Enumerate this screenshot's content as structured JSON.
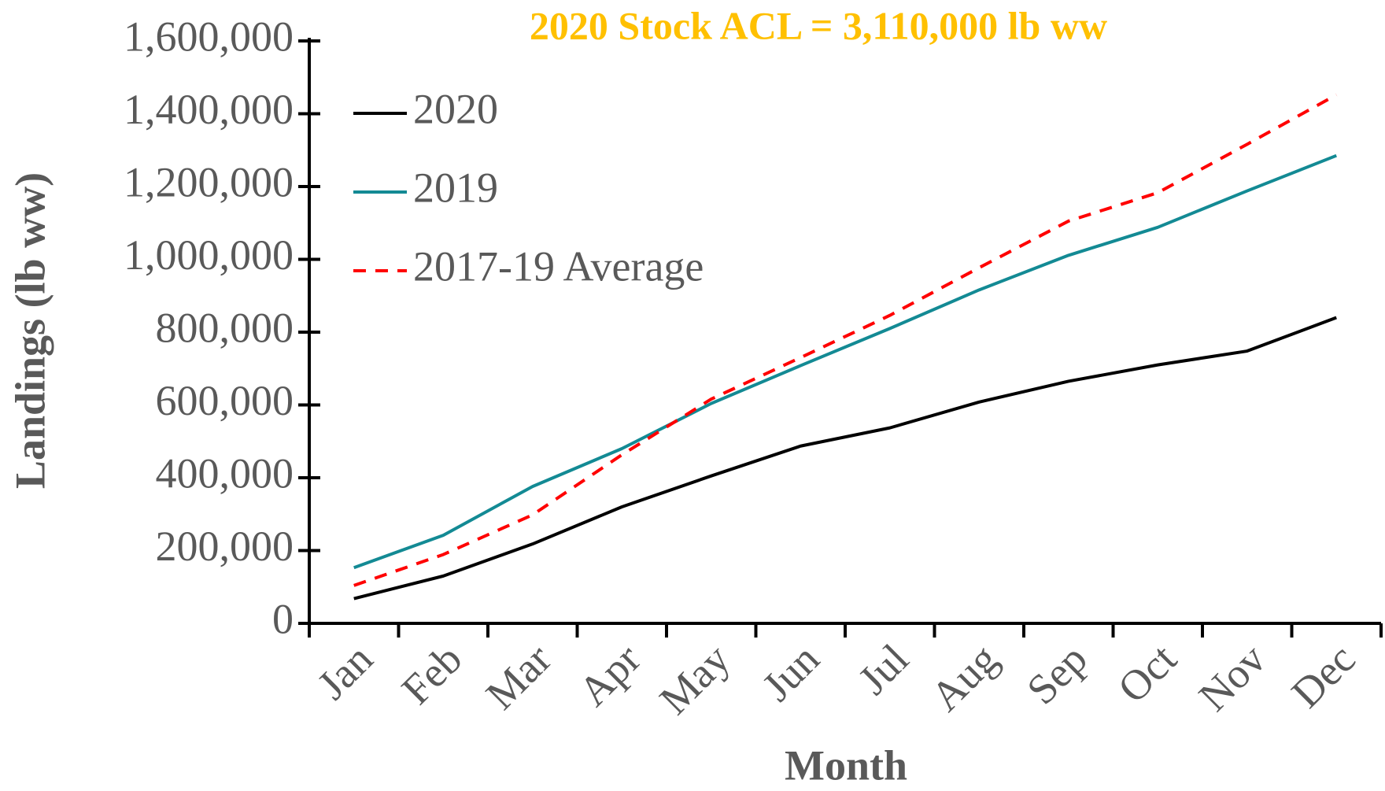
{
  "chart_data": {
    "type": "line",
    "title": "2020 Stock ACL = 3,110,000 lb ww",
    "xlabel": "Month",
    "ylabel": "Landings (lb ww)",
    "categories": [
      "Jan",
      "Feb",
      "Mar",
      "Apr",
      "May",
      "Jun",
      "Jul",
      "Aug",
      "Sep",
      "Oct",
      "Nov",
      "Dec"
    ],
    "series": [
      {
        "name": "2020",
        "color": "#000000",
        "dash": false,
        "values": [
          68000,
          130000,
          218000,
          320000,
          405000,
          487000,
          537000,
          608000,
          665000,
          710000,
          748000,
          840000
        ]
      },
      {
        "name": "2019",
        "color": "#138a94",
        "dash": false,
        "values": [
          153000,
          242000,
          376000,
          480000,
          604000,
          708000,
          810000,
          916000,
          1011000,
          1088000,
          1188000,
          1285000
        ]
      },
      {
        "name": "2017-19 Average",
        "color": "#ff0000",
        "dash": true,
        "values": [
          104000,
          189000,
          298000,
          463000,
          616000,
          730000,
          846000,
          977000,
          1105000,
          1183000,
          1316000,
          1452000
        ]
      }
    ],
    "ylim": [
      0,
      1600000
    ],
    "yticks": [
      0,
      {
        "value": 200000,
        "label": "200,000"
      },
      {
        "value": 400000,
        "label": "400,000"
      },
      {
        "value": 600000,
        "label": "600,000"
      },
      {
        "value": 800000,
        "label": "800,000"
      },
      {
        "value": 1000000,
        "label": "1,000,000"
      },
      {
        "value": 1200000,
        "label": "1,200,000"
      },
      {
        "value": 1400000,
        "label": "1,400,000"
      },
      {
        "value": 1600000,
        "label": "1,600,000"
      }
    ],
    "legend": "top-left"
  }
}
